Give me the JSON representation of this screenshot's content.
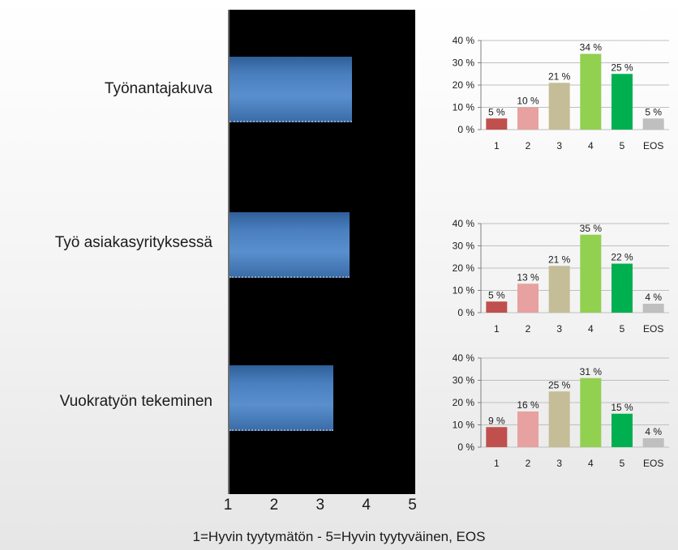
{
  "chart_data": [
    {
      "type": "bar",
      "orientation": "horizontal",
      "categories": [
        "Työnantajakuva",
        "Työ asiakasyrityksessä",
        "Vuokratyön tekeminen"
      ],
      "values": [
        3.65,
        3.6,
        3.25
      ],
      "xlim": [
        1,
        5
      ],
      "x_ticks": [
        "1",
        "2",
        "3",
        "4",
        "5"
      ],
      "xlabel": "1=Hyvin tyytymätön - 5=Hyvin tyytyväinen, EOS",
      "title": "",
      "background": "#000000",
      "bar_color": "#4f81bd"
    },
    {
      "type": "bar",
      "title": "Työnantajakuva",
      "categories": [
        "1",
        "2",
        "3",
        "4",
        "5",
        "EOS"
      ],
      "values": [
        5,
        10,
        21,
        34,
        25,
        5
      ],
      "value_labels": [
        "5 %",
        "10 %",
        "21 %",
        "34 %",
        "25 %",
        "5 %"
      ],
      "ylim": [
        0,
        40
      ],
      "y_ticks": [
        "0 %",
        "10 %",
        "20 %",
        "30 %",
        "40 %"
      ],
      "grid": true
    },
    {
      "type": "bar",
      "title": "Työ asiakasyrityksessä",
      "categories": [
        "1",
        "2",
        "3",
        "4",
        "5",
        "EOS"
      ],
      "values": [
        5,
        13,
        21,
        35,
        22,
        4
      ],
      "value_labels": [
        "5 %",
        "13 %",
        "21 %",
        "35 %",
        "22 %",
        "4 %"
      ],
      "ylim": [
        0,
        40
      ],
      "y_ticks": [
        "0 %",
        "10 %",
        "20 %",
        "30 %",
        "40 %"
      ],
      "grid": true
    },
    {
      "type": "bar",
      "title": "Vuokratyön tekeminen",
      "categories": [
        "1",
        "2",
        "3",
        "4",
        "5",
        "EOS"
      ],
      "values": [
        9,
        16,
        25,
        31,
        15,
        4
      ],
      "value_labels": [
        "9 %",
        "16 %",
        "25 %",
        "31 %",
        "15 %",
        "4 %"
      ],
      "ylim": [
        0,
        40
      ],
      "y_ticks": [
        "0 %",
        "10 %",
        "20 %",
        "30 %",
        "40 %"
      ],
      "grid": true
    }
  ],
  "colors": {
    "mini_bars": [
      "#c0504d",
      "#e6a1a0",
      "#c4bd97",
      "#92d050",
      "#00b050",
      "#bfbfbf"
    ],
    "grid": "#bfbfbf",
    "main_panel": "#000000"
  }
}
